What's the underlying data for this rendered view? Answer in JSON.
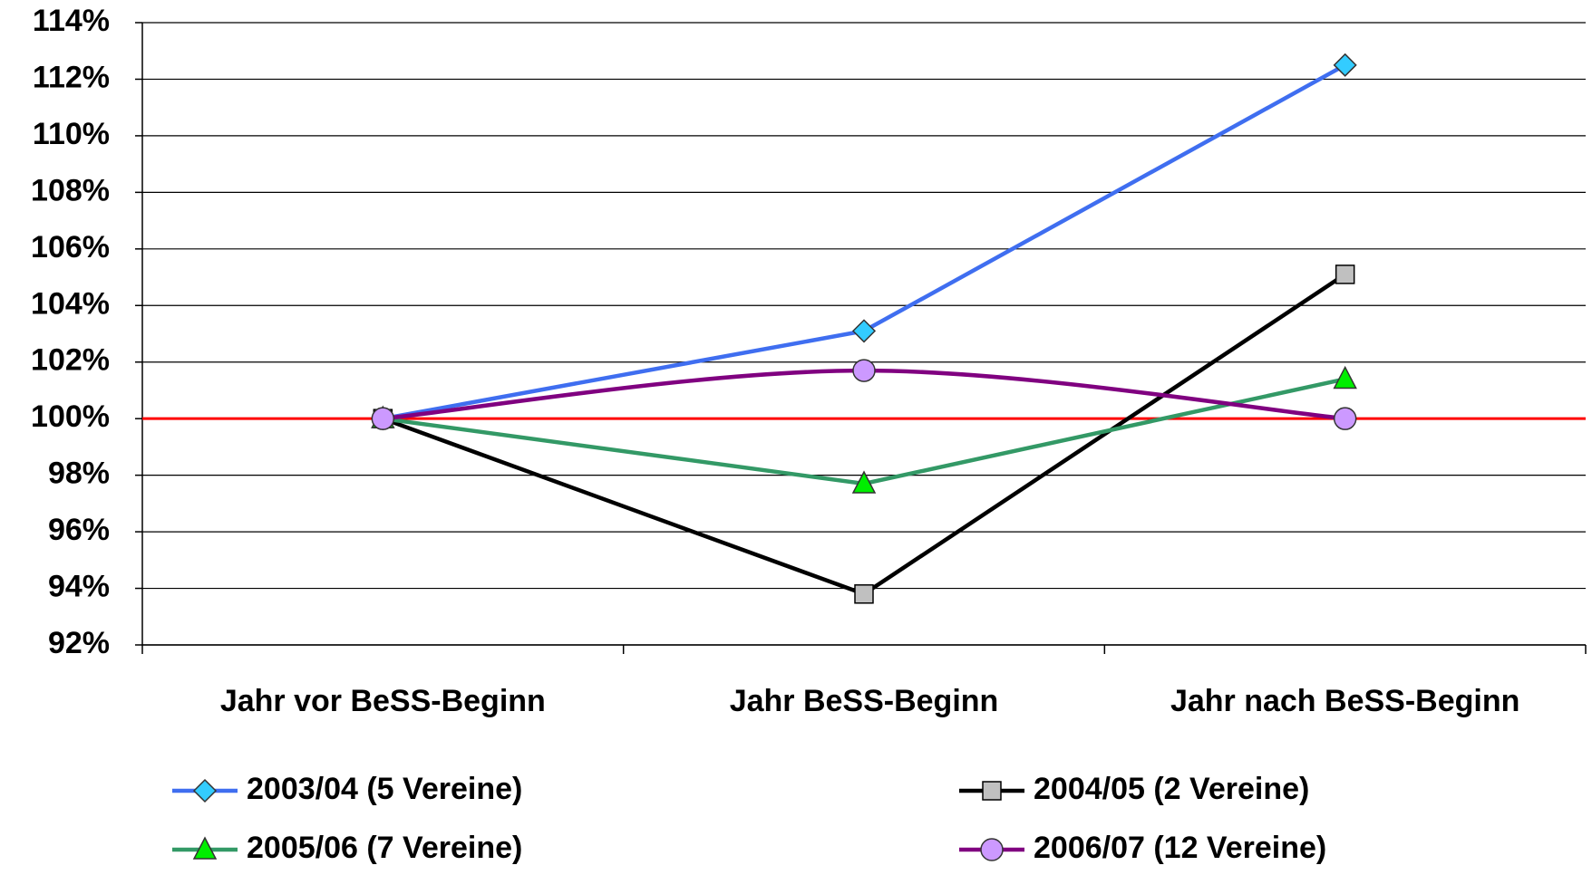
{
  "chart_data": {
    "type": "line",
    "categories": [
      "Jahr vor BeSS-Beginn",
      "Jahr BeSS-Beginn",
      "Jahr nach BeSS-Beginn"
    ],
    "series": [
      {
        "name": "2003/04 (5 Vereine)",
        "color": "#3f6ef0",
        "marker": "diamond",
        "marker_color": "#33ccff",
        "values": [
          100,
          103.1,
          112.5
        ]
      },
      {
        "name": "2004/05 (2 Vereine)",
        "color": "#000000",
        "marker": "square",
        "marker_color": "#c0c0c0",
        "values": [
          100,
          93.8,
          105.1
        ]
      },
      {
        "name": "2005/06 (7 Vereine)",
        "color": "#339966",
        "marker": "triangle",
        "marker_color": "#00ee00",
        "values": [
          100,
          97.7,
          101.4
        ]
      },
      {
        "name": "2006/07 (12 Vereine)",
        "color": "#800080",
        "marker": "circle",
        "marker_color": "#cc99ff",
        "smooth": true,
        "values": [
          100,
          101.7,
          100
        ]
      }
    ],
    "ylim": [
      92,
      114
    ],
    "yticks": [
      {
        "value": 92,
        "label": "92%"
      },
      {
        "value": 94,
        "label": "94%"
      },
      {
        "value": 96,
        "label": "96%"
      },
      {
        "value": 98,
        "label": "98%"
      },
      {
        "value": 100,
        "label": "100%"
      },
      {
        "value": 102,
        "label": "102%"
      },
      {
        "value": 104,
        "label": "104%"
      },
      {
        "value": 106,
        "label": "106%"
      },
      {
        "value": 108,
        "label": "108%"
      },
      {
        "value": 110,
        "label": "110%"
      },
      {
        "value": 112,
        "label": "112%"
      },
      {
        "value": 114,
        "label": "114%"
      }
    ],
    "grid": true,
    "reference_line": {
      "value": 100,
      "color": "#ff0000"
    },
    "legend": "bottom"
  }
}
